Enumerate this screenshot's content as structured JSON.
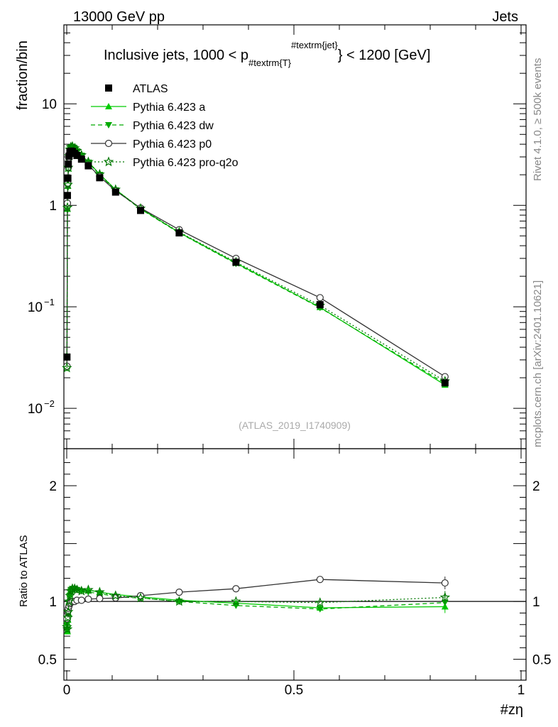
{
  "header": {
    "energy_label": "13000 GeV pp",
    "process_label": "Jets",
    "side_label_top": "Rivet 4.1.0, ≥ 500k events",
    "side_label_bottom": "mcplots.cern.ch [arXiv:2401.10621]",
    "analysis_id": "(ATLAS_2019_I1740909)"
  },
  "chart_data": {
    "type": "line",
    "title": "Inclusive jets, 1000 < p_{#textrm{T}}^{#textrm{jet}} < 1200 [GeV]",
    "title_parts": {
      "prefix": "Inclusive jets, 1000 < p",
      "subscript": "#textrm{T}",
      "superscript": "#textrm{jet}",
      "suffix": "} < 1200 [GeV]"
    },
    "xlabel": "#zη",
    "ylabel": "fraction/bin",
    "ratio_ylabel": "Ratio to ATLAS",
    "xlim": [
      0,
      1
    ],
    "ylim": [
      0.004,
      60
    ],
    "yscale": "log",
    "ratio_ylim": [
      0.32,
      2.32
    ],
    "x_ticks": [
      {
        "value": 0,
        "label": "0"
      },
      {
        "value": 0.5,
        "label": "0.5"
      },
      {
        "value": 1,
        "label": "1"
      }
    ],
    "y_ticks": [
      {
        "value": 10,
        "label": "10",
        "sup": ""
      },
      {
        "value": 1,
        "label": "1",
        "sup": ""
      },
      {
        "value": 0.1,
        "label": "10",
        "sup": "−1"
      },
      {
        "value": 0.01,
        "label": "10",
        "sup": "−2"
      }
    ],
    "ratio_ticks": [
      {
        "value": 2,
        "label": "2"
      },
      {
        "value": 1,
        "label": "1"
      },
      {
        "value": 0.5,
        "label": "0.5"
      }
    ],
    "legend_position": "top-left",
    "x": [
      0.0005,
      0.0015,
      0.0025,
      0.0035,
      0.005,
      0.007,
      0.009,
      0.0125,
      0.0175,
      0.0225,
      0.0325,
      0.0475,
      0.0725,
      0.1075,
      0.1625,
      0.2475,
      0.3725,
      0.5575,
      0.8325
    ],
    "series": [
      {
        "name": "ATLAS",
        "style": "data",
        "color": "#000000",
        "values": [
          0.032,
          1.25,
          1.85,
          2.55,
          3.05,
          3.35,
          3.42,
          3.4,
          3.25,
          3.1,
          2.85,
          2.45,
          1.87,
          1.35,
          0.89,
          0.535,
          0.275,
          0.105,
          0.0178
        ],
        "ratio": [
          1,
          1,
          1,
          1,
          1,
          1,
          1,
          1,
          1,
          1,
          1,
          1,
          1,
          1,
          1,
          1,
          1,
          1,
          1
        ]
      },
      {
        "name": "Pythia 6.423 a",
        "style": "solid",
        "marker": "triangle-up",
        "color": "#00cc00",
        "values": [
          0.026,
          0.92,
          1.55,
          2.3,
          3.05,
          3.55,
          3.75,
          3.8,
          3.65,
          3.45,
          3.12,
          2.68,
          2.02,
          1.43,
          0.93,
          0.54,
          0.27,
          0.099,
          0.017
        ],
        "ratio": [
          0.82,
          0.74,
          0.84,
          0.9,
          1.0,
          1.06,
          1.1,
          1.12,
          1.12,
          1.11,
          1.1,
          1.1,
          1.08,
          1.06,
          1.04,
          1.01,
          0.985,
          0.945,
          0.955
        ]
      },
      {
        "name": "Pythia 6.423 dw",
        "style": "dashed",
        "marker": "triangle-down",
        "color": "#00aa00",
        "values": [
          0.025,
          0.9,
          1.5,
          2.25,
          3.0,
          3.5,
          3.72,
          3.78,
          3.62,
          3.42,
          3.1,
          2.65,
          2.0,
          1.41,
          0.92,
          0.535,
          0.266,
          0.098,
          0.0176
        ],
        "ratio": [
          0.8,
          0.76,
          0.83,
          0.89,
          0.99,
          1.05,
          1.09,
          1.11,
          1.11,
          1.1,
          1.09,
          1.08,
          1.07,
          1.04,
          1.03,
          1.0,
          0.965,
          0.935,
          0.99
        ]
      },
      {
        "name": "Pythia 6.423 p0",
        "style": "solid",
        "marker": "circle-open",
        "color": "#333333",
        "values": [
          0.026,
          1.05,
          1.65,
          2.35,
          2.95,
          3.3,
          3.4,
          3.42,
          3.28,
          3.15,
          2.88,
          2.5,
          1.92,
          1.39,
          0.94,
          0.575,
          0.3,
          0.123,
          0.0205
        ],
        "ratio": [
          0.85,
          0.91,
          0.92,
          0.94,
          0.96,
          0.98,
          0.99,
          1.0,
          1.0,
          1.01,
          1.01,
          1.02,
          1.025,
          1.03,
          1.05,
          1.08,
          1.11,
          1.19,
          1.16
        ]
      },
      {
        "name": "Pythia 6.423 pro-q2o",
        "style": "dotted",
        "marker": "star-open",
        "color": "#007700",
        "values": [
          0.025,
          0.95,
          1.6,
          2.35,
          3.05,
          3.55,
          3.75,
          3.8,
          3.65,
          3.45,
          3.12,
          2.68,
          2.02,
          1.43,
          0.93,
          0.545,
          0.275,
          0.103,
          0.0185
        ],
        "ratio": [
          0.78,
          0.76,
          0.86,
          0.91,
          1.0,
          1.05,
          1.09,
          1.11,
          1.11,
          1.1,
          1.09,
          1.1,
          1.08,
          1.05,
          1.03,
          1.0,
          1.0,
          0.99,
          1.035
        ]
      }
    ]
  }
}
